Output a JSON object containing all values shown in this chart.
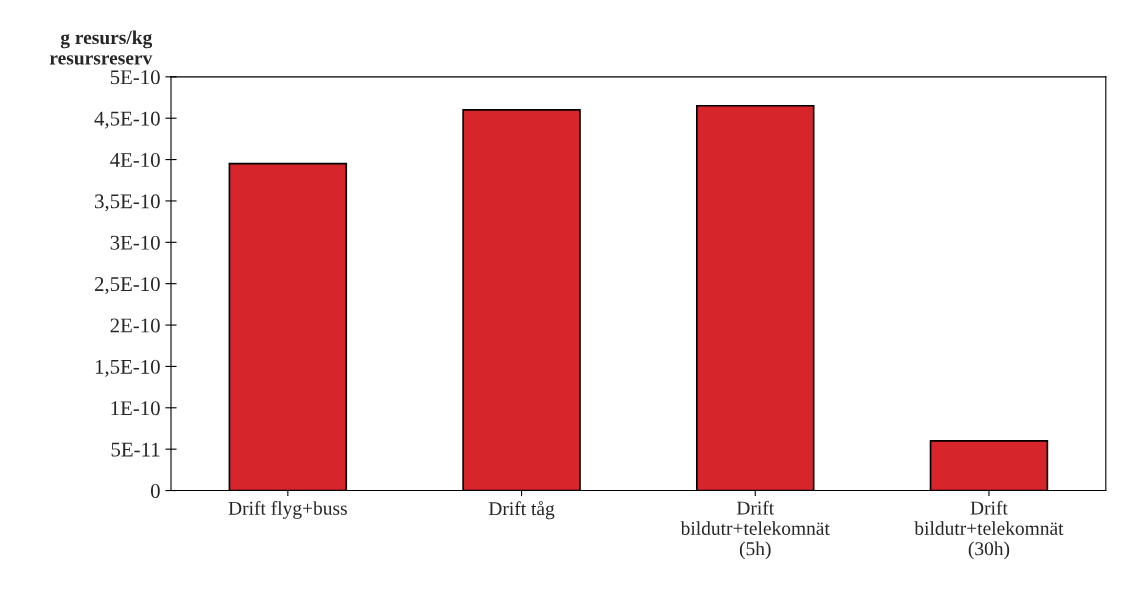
{
  "chart_data": {
    "type": "bar",
    "ylabel": "g resurs/kg\nresursreserv",
    "categories": [
      "Drift flyg+buss",
      "Drift tåg",
      "Drift\nbildutr+telekomnät\n(5h)",
      "Drift\nbildutr+telekomnät\n(30h)"
    ],
    "values": [
      3.95e-10,
      4.6e-10,
      4.65e-10,
      6e-11
    ],
    "color": "#d7262b",
    "ylim": [
      0,
      5e-10
    ],
    "yticks": [
      {
        "value": 0,
        "label": "0"
      },
      {
        "value": 5e-11,
        "label": "5E-11"
      },
      {
        "value": 1e-10,
        "label": "1E-10"
      },
      {
        "value": 1.5e-10,
        "label": "1,5E-10"
      },
      {
        "value": 2e-10,
        "label": "2E-10"
      },
      {
        "value": 2.5e-10,
        "label": "2,5E-10"
      },
      {
        "value": 3e-10,
        "label": "3E-10"
      },
      {
        "value": 3.5e-10,
        "label": "3,5E-10"
      },
      {
        "value": 4e-10,
        "label": "4E-10"
      },
      {
        "value": 4.5e-10,
        "label": "4,5E-10"
      },
      {
        "value": 5e-10,
        "label": "5E-10"
      }
    ],
    "grid": false,
    "legend": false
  }
}
